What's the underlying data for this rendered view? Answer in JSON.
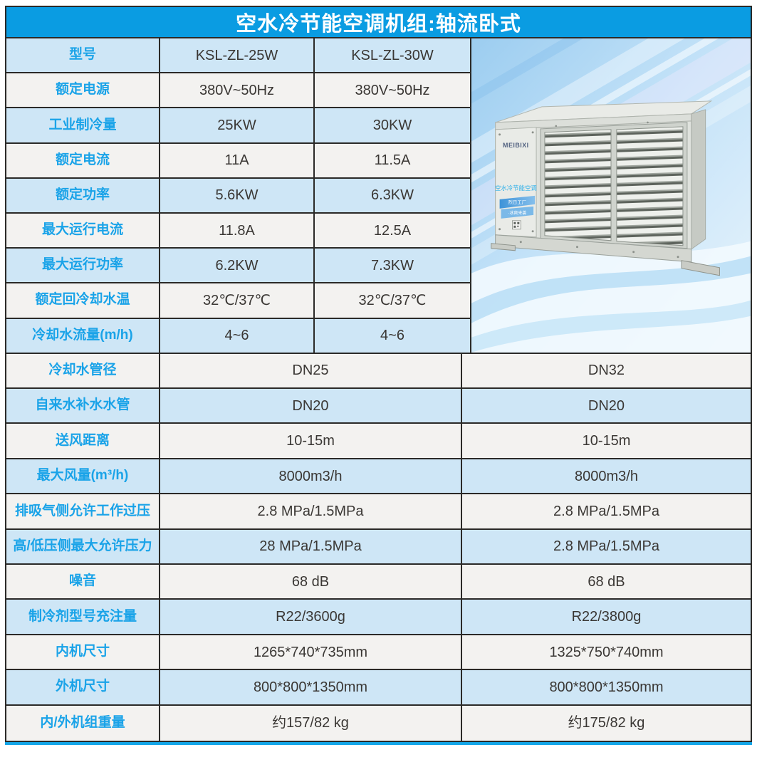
{
  "title": "空水冷节能空调机组:轴流卧式",
  "colors": {
    "header_bg": "#0a9ce2",
    "row_blue": "#cee6f6",
    "row_white": "#f3f2f0",
    "label_color": "#1aa3e8",
    "value_color": "#3a3734",
    "border": "#2b2a28",
    "accent_line": "#14a6e8"
  },
  "table": {
    "top_rows": [
      {
        "label": "型号",
        "v1": "KSL-ZL-25W",
        "v2": "KSL-ZL-30W"
      },
      {
        "label": "额定电源",
        "v1": "380V~50Hz",
        "v2": "380V~50Hz"
      },
      {
        "label": "工业制冷量",
        "v1": "25KW",
        "v2": "30KW"
      },
      {
        "label": "额定电流",
        "v1": "11A",
        "v2": "11.5A"
      },
      {
        "label": "额定功率",
        "v1": "5.6KW",
        "v2": "6.3KW"
      },
      {
        "label": "最大运行电流",
        "v1": "11.8A",
        "v2": "12.5A"
      },
      {
        "label": "最大运行功率",
        "v1": "6.2KW",
        "v2": "7.3KW"
      },
      {
        "label": "额定回冷却水温",
        "v1": "32℃/37℃",
        "v2": "32℃/37℃"
      },
      {
        "label": "冷却水流量(m/h)",
        "v1": "4~6",
        "v2": "4~6"
      }
    ],
    "bottom_rows": [
      {
        "label": "冷却水管径",
        "v1": "DN25",
        "v2": "DN32"
      },
      {
        "label": "自来水补水水管",
        "v1": "DN20",
        "v2": "DN20"
      },
      {
        "label": "送风距离",
        "v1": "10-15m",
        "v2": "10-15m"
      },
      {
        "label": "最大风量(m³/h)",
        "v1": "8000m3/h",
        "v2": "8000m3/h"
      },
      {
        "label": "排吸气侧允许工作过压",
        "v1": "2.8 MPa/1.5MPa",
        "v2": "2.8 MPa/1.5MPa"
      },
      {
        "label": "高/低压侧最大允许压力",
        "v1": "28 MPa/1.5MPa",
        "v2": "2.8 MPa/1.5MPa"
      },
      {
        "label": "噪音",
        "v1": "68 dB",
        "v2": "68 dB"
      },
      {
        "label": "制冷剂型号充注量",
        "v1": "R22/3600g",
        "v2": "R22/3800g"
      },
      {
        "label": "内机尺寸",
        "v1": "1265*740*735mm",
        "v2": "1325*750*740mm"
      },
      {
        "label": "外机尺寸",
        "v1": "800*800*1350mm",
        "v2": "800*800*1350mm"
      },
      {
        "label": "内/外机组重量",
        "v1": "约157/82 kg",
        "v2": "约175/82 kg"
      }
    ]
  },
  "product_image": {
    "brand": "MEIBIXI",
    "caption": "空水冷节能空调",
    "ribbon_line1": "烈日工厂",
    "ribbon_line2": "·冰爽来袭"
  }
}
